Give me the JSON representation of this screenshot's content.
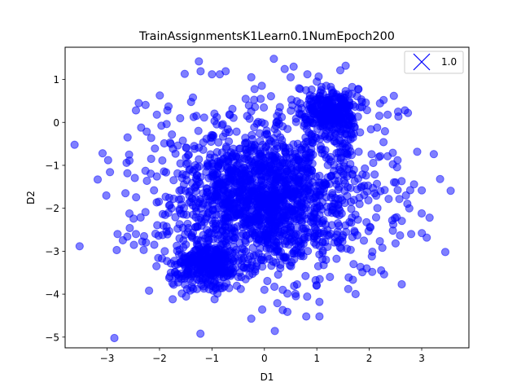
{
  "chart_data": {
    "type": "scatter",
    "title": "TrainAssignmentsK1Learn0.1NumEpoch200",
    "xlabel": "D1",
    "ylabel": "D2",
    "xlim": [
      -3.8,
      3.9
    ],
    "ylim": [
      -5.25,
      1.75
    ],
    "xticks": [
      -3,
      -2,
      -1,
      0,
      1,
      2,
      3
    ],
    "yticks": [
      -5,
      -4,
      -3,
      -2,
      -1,
      0,
      1
    ],
    "grid": false,
    "legend_position": "top-right",
    "marker_color": "#0000ff",
    "marker_alpha": 0.5,
    "series": [
      {
        "name": "1.0",
        "clusters": [
          {
            "center": [
              0.0,
              -1.8
            ],
            "spread": [
              0.85,
              0.75
            ],
            "count": 1300
          },
          {
            "center": [
              1.25,
              0.25
            ],
            "spread": [
              0.28,
              0.28
            ],
            "count": 320
          },
          {
            "center": [
              -1.1,
              -3.3
            ],
            "spread": [
              0.33,
              0.28
            ],
            "count": 320
          },
          {
            "center": [
              0.2,
              -1.4
            ],
            "spread": [
              1.35,
              1.2
            ],
            "count": 450
          }
        ],
        "points": [
          [
            -3.62,
            -0.52
          ],
          [
            -2.98,
            -0.88
          ],
          [
            -2.65,
            -1.65
          ],
          [
            -2.61,
            -0.35
          ],
          [
            -2.58,
            -0.75
          ],
          [
            -2.45,
            0.28
          ],
          [
            -1.52,
            1.13
          ],
          [
            -1.25,
            1.42
          ],
          [
            0.18,
            1.48
          ],
          [
            1.55,
            1.32
          ],
          [
            3.45,
            -3.02
          ],
          [
            3.35,
            -1.32
          ],
          [
            3.0,
            -2.12
          ],
          [
            2.78,
            -1.58
          ],
          [
            2.62,
            -3.77
          ],
          [
            2.68,
            0.28
          ],
          [
            2.55,
            0.25
          ],
          [
            -1.22,
            -4.92
          ],
          [
            -0.25,
            -4.57
          ],
          [
            0.35,
            -4.37
          ],
          [
            1.05,
            -4.52
          ],
          [
            1.05,
            -4.18
          ],
          [
            -2.2,
            -3.92
          ],
          [
            -1.75,
            -4.12
          ],
          [
            -0.95,
            -4.12
          ],
          [
            -0.45,
            -3.88
          ],
          [
            1.6,
            -3.88
          ],
          [
            2.05,
            -3.12
          ],
          [
            2.25,
            -2.92
          ],
          [
            2.45,
            -2.52
          ],
          [
            2.35,
            0.18
          ],
          [
            2.15,
            -0.12
          ],
          [
            -2.35,
            -0.12
          ],
          [
            -2.05,
            0.18
          ],
          [
            -1.85,
            0.28
          ],
          [
            -1.0,
            1.12
          ],
          [
            -0.85,
            1.12
          ],
          [
            -0.25,
            1.05
          ],
          [
            -0.05,
            0.85
          ],
          [
            0.5,
            1.05
          ],
          [
            0.82,
            1.12
          ],
          [
            1.0,
            0.95
          ],
          [
            -2.8,
            -2.6
          ],
          [
            -2.45,
            -2.6
          ],
          [
            -2.1,
            -2.85
          ],
          [
            -1.9,
            -3.0
          ],
          [
            1.25,
            -3.6
          ],
          [
            1.7,
            -3.3
          ],
          [
            1.95,
            -3.4
          ],
          [
            0.35,
            -3.9
          ],
          [
            0.6,
            -4.05
          ],
          [
            0.0,
            -3.9
          ],
          [
            -0.5,
            -3.6
          ],
          [
            2.8,
            -2.6
          ],
          [
            2.7,
            -1.7
          ]
        ]
      }
    ]
  }
}
